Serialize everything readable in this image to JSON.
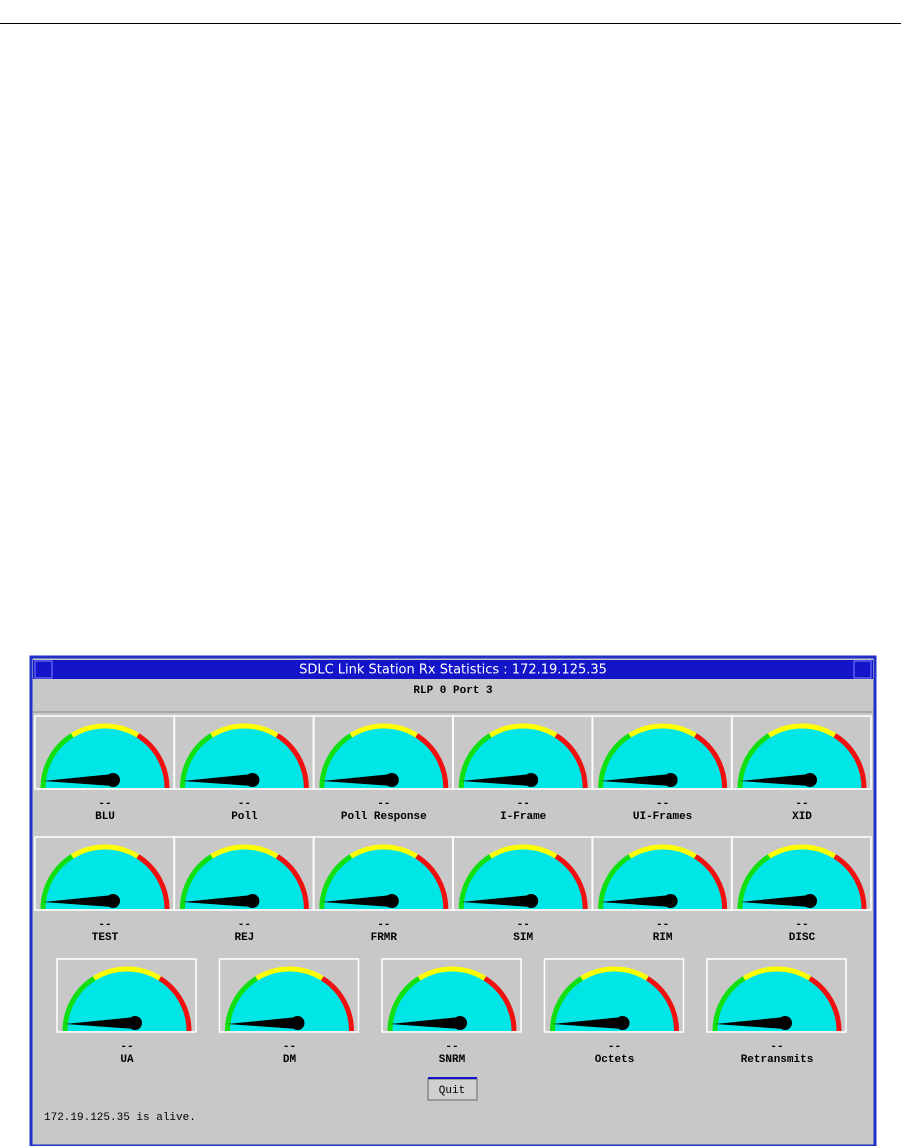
{
  "window": {
    "title": "SDLC Link Station Rx Statistics : 172.19.125.35",
    "subtitle": "RLP 0 Port 3"
  },
  "gauges": [
    {
      "value": "--",
      "label": "BLU"
    },
    {
      "value": "--",
      "label": "Poll"
    },
    {
      "value": "--",
      "label": "Poll Response"
    },
    {
      "value": "--",
      "label": "I-Frame"
    },
    {
      "value": "--",
      "label": "UI-Frames"
    },
    {
      "value": "--",
      "label": "XID"
    },
    {
      "value": "--",
      "label": "TEST"
    },
    {
      "value": "--",
      "label": "REJ"
    },
    {
      "value": "--",
      "label": "FRMR"
    },
    {
      "value": "--",
      "label": "SIM"
    },
    {
      "value": "--",
      "label": "RIM"
    },
    {
      "value": "--",
      "label": "DISC"
    },
    {
      "value": "--",
      "label": "UA"
    },
    {
      "value": "--",
      "label": "DM"
    },
    {
      "value": "--",
      "label": "SNRM"
    },
    {
      "value": "--",
      "label": "Octets"
    },
    {
      "value": "--",
      "label": "Retransmits"
    }
  ],
  "button": "Quit",
  "status": "172.19.125.35 is alive."
}
